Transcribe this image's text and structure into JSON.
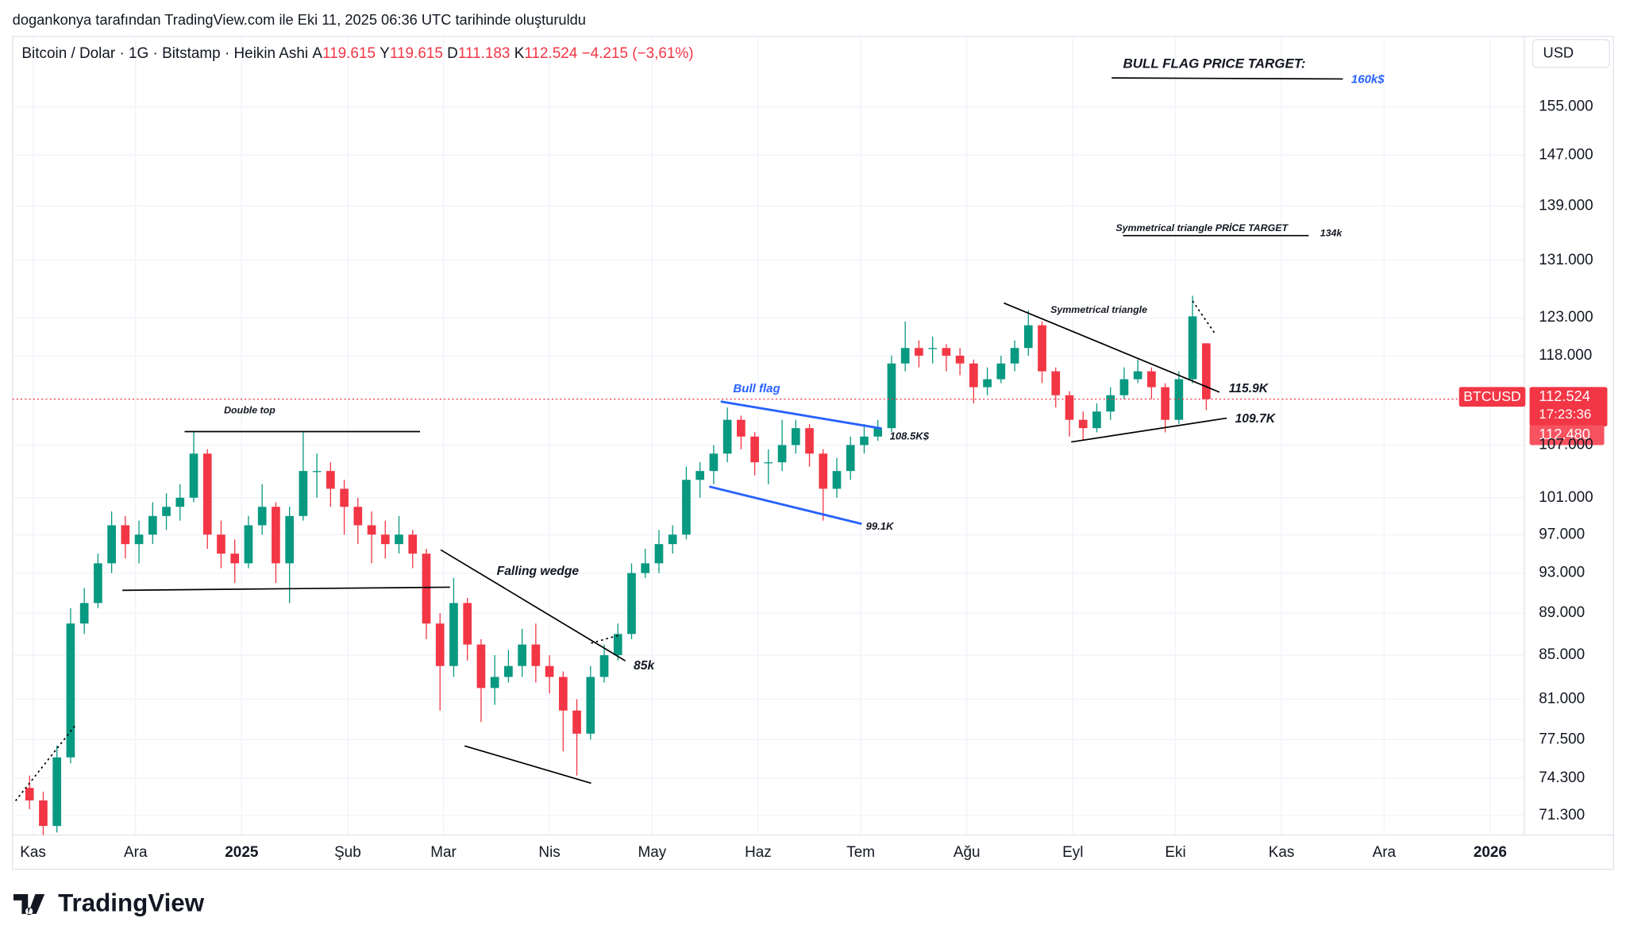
{
  "chart_data": {
    "type": "candlestick",
    "credit": "dogankonya tarafından TradingView.com ile Eki 11, 2025 06:36 UTC tarihinde oluşturuldu",
    "symbol_title": "Bitcoin / Dolar · 1G · Bitstamp · Heikin Ashi",
    "ohlc_header": [
      {
        "key": "A",
        "value": "119.615"
      },
      {
        "key": "Y",
        "value": "119.615"
      },
      {
        "key": "D",
        "value": "111.183"
      },
      {
        "key": "K",
        "value": "112.524"
      }
    ],
    "change": "−4.215 (−3,61%)",
    "currency": "USD",
    "symbol": "BTCUSD",
    "last_price": {
      "value": 112524,
      "label": "112.524"
    },
    "countdown": "17:23:36",
    "bid_price": "112.480",
    "brand": "TradingView",
    "up_color": "#089981",
    "down_color": "#f23645",
    "log_scale": true,
    "grid": true,
    "xlim": [
      -6,
      436
    ],
    "ylim": [
      69800,
      167400
    ],
    "xticks": [
      {
        "value": 0,
        "label": "Kas"
      },
      {
        "value": 30,
        "label": "Ara"
      },
      {
        "value": 61,
        "label": "2025"
      },
      {
        "value": 92,
        "label": "Şub"
      },
      {
        "value": 120,
        "label": "Mar"
      },
      {
        "value": 151,
        "label": "Nis"
      },
      {
        "value": 181,
        "label": "May"
      },
      {
        "value": 212,
        "label": "Haz"
      },
      {
        "value": 242,
        "label": "Tem"
      },
      {
        "value": 273,
        "label": "Ağu"
      },
      {
        "value": 304,
        "label": "Eyl"
      },
      {
        "value": 334,
        "label": "Eki"
      },
      {
        "value": 365,
        "label": "Kas"
      },
      {
        "value": 395,
        "label": "Ara"
      },
      {
        "value": 426,
        "label": "2026"
      }
    ],
    "yticks": [
      {
        "value": 155000,
        "label": "155.000"
      },
      {
        "value": 147000,
        "label": "147.000"
      },
      {
        "value": 139000,
        "label": "139.000"
      },
      {
        "value": 131000,
        "label": "131.000"
      },
      {
        "value": 123000,
        "label": "123.000"
      },
      {
        "value": 118000,
        "label": "118.000"
      },
      {
        "value": 107000,
        "label": "107.000"
      },
      {
        "value": 101000,
        "label": "101.000"
      },
      {
        "value": 97000,
        "label": "97.000"
      },
      {
        "value": 93000,
        "label": "93.000"
      },
      {
        "value": 89000,
        "label": "89.000"
      },
      {
        "value": 85000,
        "label": "85.000"
      },
      {
        "value": 81000,
        "label": "81.000"
      },
      {
        "value": 77500,
        "label": "77.500"
      },
      {
        "value": 74300,
        "label": "74.300"
      },
      {
        "value": 71300,
        "label": "71.300"
      }
    ],
    "candles": {
      "x": [
        -1,
        3,
        7,
        11,
        15,
        19,
        23,
        27,
        31,
        35,
        39,
        43,
        47,
        51,
        55,
        59,
        63,
        67,
        71,
        75,
        79,
        83,
        87,
        91,
        95,
        99,
        103,
        107,
        111,
        115,
        119,
        123,
        127,
        131,
        135,
        139,
        143,
        147,
        151,
        155,
        159,
        163,
        167,
        171,
        175,
        179,
        183,
        187,
        191,
        195,
        199,
        203,
        207,
        211,
        215,
        219,
        223,
        227,
        231,
        235,
        239,
        243,
        247,
        251,
        255,
        259,
        263,
        267,
        271,
        275,
        279,
        283,
        287,
        291,
        295,
        299,
        303,
        307,
        311,
        315,
        319,
        323,
        327,
        331,
        335,
        339,
        343
      ],
      "open": [
        73500,
        72500,
        70500,
        76000,
        88000,
        90000,
        94000,
        98000,
        96000,
        97000,
        99000,
        100000,
        101000,
        106000,
        97000,
        95000,
        94000,
        98000,
        100000,
        94000,
        99000,
        104000,
        104000,
        102000,
        100000,
        98000,
        97000,
        96000,
        97000,
        95000,
        88000,
        84000,
        90000,
        86000,
        82000,
        83000,
        84000,
        86000,
        84000,
        83000,
        80000,
        78000,
        83000,
        85000,
        87000,
        93000,
        94000,
        96000,
        97000,
        103000,
        104000,
        106000,
        110000,
        108000,
        105000,
        105000,
        107000,
        109000,
        106000,
        102000,
        104000,
        107000,
        108000,
        109000,
        117000,
        119000,
        119000,
        119000,
        118000,
        117000,
        114000,
        115000,
        117000,
        119000,
        122000,
        116000,
        113000,
        110000,
        109000,
        111000,
        113000,
        115000,
        116000,
        114000,
        110000,
        115000,
        119615
      ],
      "high": [
        74500,
        73200,
        77000,
        89500,
        91500,
        95000,
        99500,
        99000,
        98500,
        100500,
        101500,
        102500,
        108500,
        106500,
        98500,
        96500,
        99000,
        102500,
        100500,
        100000,
        108500,
        106000,
        105000,
        103000,
        101000,
        99500,
        98500,
        99000,
        97500,
        95500,
        89000,
        92500,
        90500,
        86500,
        85000,
        85500,
        87500,
        88000,
        85000,
        83500,
        81000,
        84000,
        86000,
        88000,
        94000,
        95500,
        97500,
        98000,
        104500,
        105000,
        107000,
        111500,
        110500,
        108500,
        106500,
        110000,
        110000,
        109500,
        106500,
        105500,
        108000,
        109500,
        110000,
        118000,
        122500,
        120000,
        120500,
        119500,
        119000,
        117500,
        116500,
        118000,
        120000,
        124000,
        122500,
        116500,
        113500,
        111000,
        112000,
        114000,
        116500,
        117500,
        116500,
        114500,
        116000,
        126000,
        119615
      ],
      "low": [
        71800,
        69800,
        70000,
        75500,
        87000,
        89500,
        93000,
        94500,
        94000,
        96000,
        97500,
        98500,
        100500,
        95500,
        93500,
        92000,
        93500,
        97000,
        92000,
        90000,
        98500,
        101000,
        100000,
        97000,
        96000,
        94000,
        94500,
        95000,
        93500,
        86500,
        80000,
        83000,
        84500,
        79000,
        80500,
        82500,
        83000,
        82500,
        81500,
        76500,
        74500,
        77500,
        82500,
        84500,
        86500,
        92500,
        93000,
        95000,
        96500,
        101000,
        102500,
        105000,
        106500,
        103500,
        102500,
        104000,
        106000,
        104500,
        98500,
        101000,
        103000,
        106000,
        107500,
        108500,
        116000,
        116500,
        117000,
        116000,
        115500,
        112000,
        113000,
        114500,
        116000,
        118000,
        114500,
        111500,
        108000,
        107500,
        108500,
        110000,
        112500,
        114500,
        112500,
        108500,
        109500,
        114500,
        111183
      ],
      "close": [
        72500,
        70500,
        76000,
        88000,
        90000,
        94000,
        98000,
        96000,
        97000,
        99000,
        100000,
        101000,
        106000,
        97000,
        95000,
        94000,
        98000,
        100000,
        94000,
        99000,
        104000,
        104000,
        102000,
        100000,
        98000,
        97000,
        96000,
        97000,
        95000,
        88000,
        84000,
        90000,
        86000,
        82000,
        83000,
        84000,
        86000,
        84000,
        83000,
        80000,
        78000,
        83000,
        85000,
        87000,
        93000,
        94000,
        96000,
        97000,
        103000,
        104000,
        106000,
        110000,
        108000,
        105000,
        105000,
        107000,
        109000,
        106000,
        102000,
        104000,
        107000,
        108000,
        109000,
        117000,
        119000,
        118000,
        119000,
        118000,
        117000,
        114000,
        115000,
        117000,
        119000,
        122000,
        116000,
        113000,
        110000,
        109000,
        111000,
        113000,
        115000,
        116000,
        114000,
        110000,
        115000,
        123200,
        112524
      ]
    },
    "annotations": {
      "bull_flag_target": "BULL FLAG PRICE TARGET:",
      "bull_flag_target_value": "160k$",
      "triangle_target": "Symmetrical triangle PRİCE TARGET",
      "triangle_target_value": "134k",
      "triangle": "Symmetrical triangle",
      "triangle_top": "115.9K",
      "triangle_bottom": "109.7K",
      "bull_flag": "Bull flag",
      "bull_flag_top": "108.5K$",
      "bull_flag_bottom": "99.1K",
      "falling_wedge": "Falling wedge",
      "falling_wedge_value": "85k",
      "double_top": "Double top"
    }
  }
}
